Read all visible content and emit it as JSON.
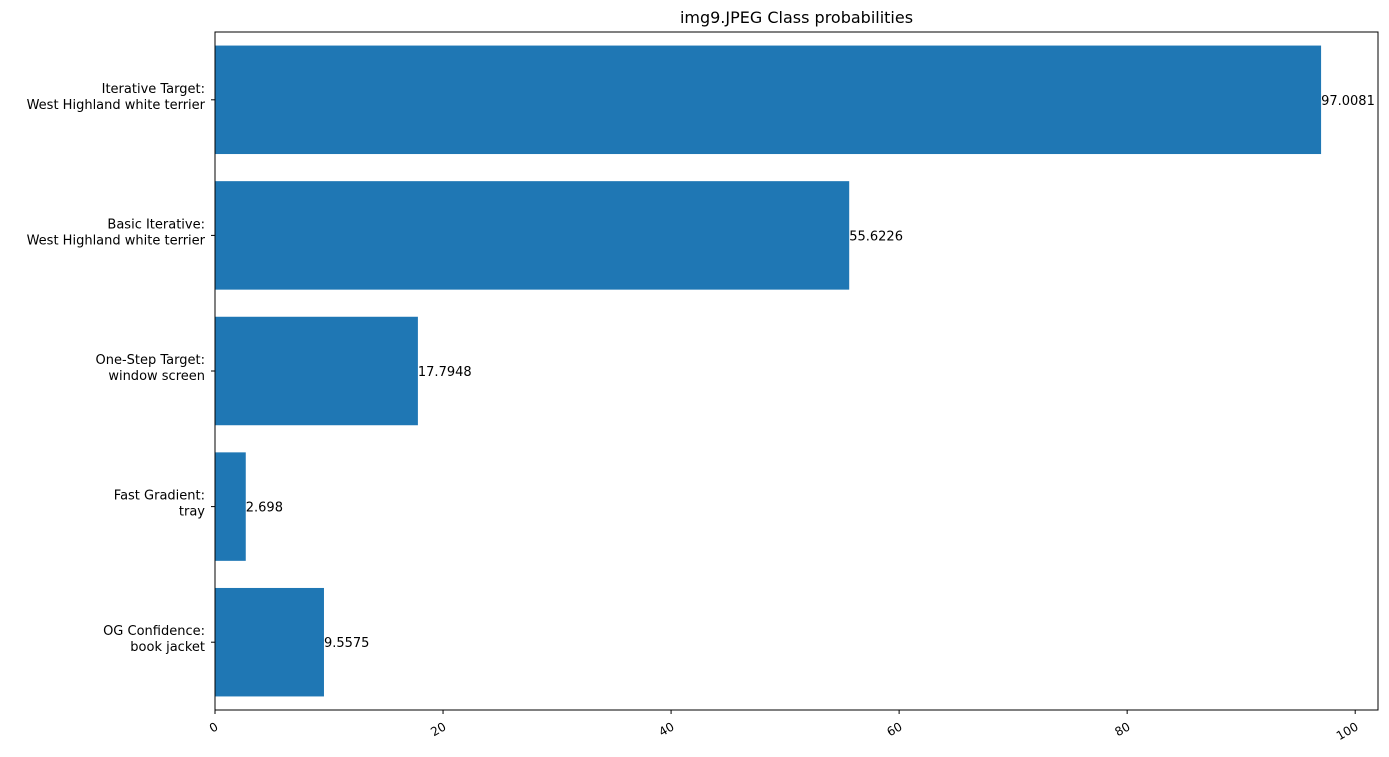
{
  "chart_data": {
    "type": "bar",
    "orientation": "horizontal",
    "title": "img9.JPEG Class probabilities",
    "xlabel": "",
    "ylabel": "",
    "categories": [
      [
        "OG Confidence:",
        "book jacket"
      ],
      [
        "Fast Gradient:",
        "tray"
      ],
      [
        "One-Step Target:",
        "window screen"
      ],
      [
        "Basic Iterative:",
        "West Highland white terrier"
      ],
      [
        "Iterative Target:",
        "West Highland white terrier"
      ]
    ],
    "values": [
      9.5575,
      2.698,
      17.7948,
      55.6226,
      97.0081
    ],
    "value_labels": [
      "9.5575",
      "2.698",
      "17.7948",
      "55.6226",
      "97.0081"
    ],
    "xlim": [
      0,
      102
    ],
    "xticks": [
      0,
      20,
      40,
      60,
      80,
      100
    ],
    "xtick_labels": [
      "0",
      "20",
      "40",
      "60",
      "80",
      "100"
    ],
    "xtick_rotation_deg": 30,
    "grid": false,
    "legend": "none",
    "bar_color": "#1f77b4"
  }
}
